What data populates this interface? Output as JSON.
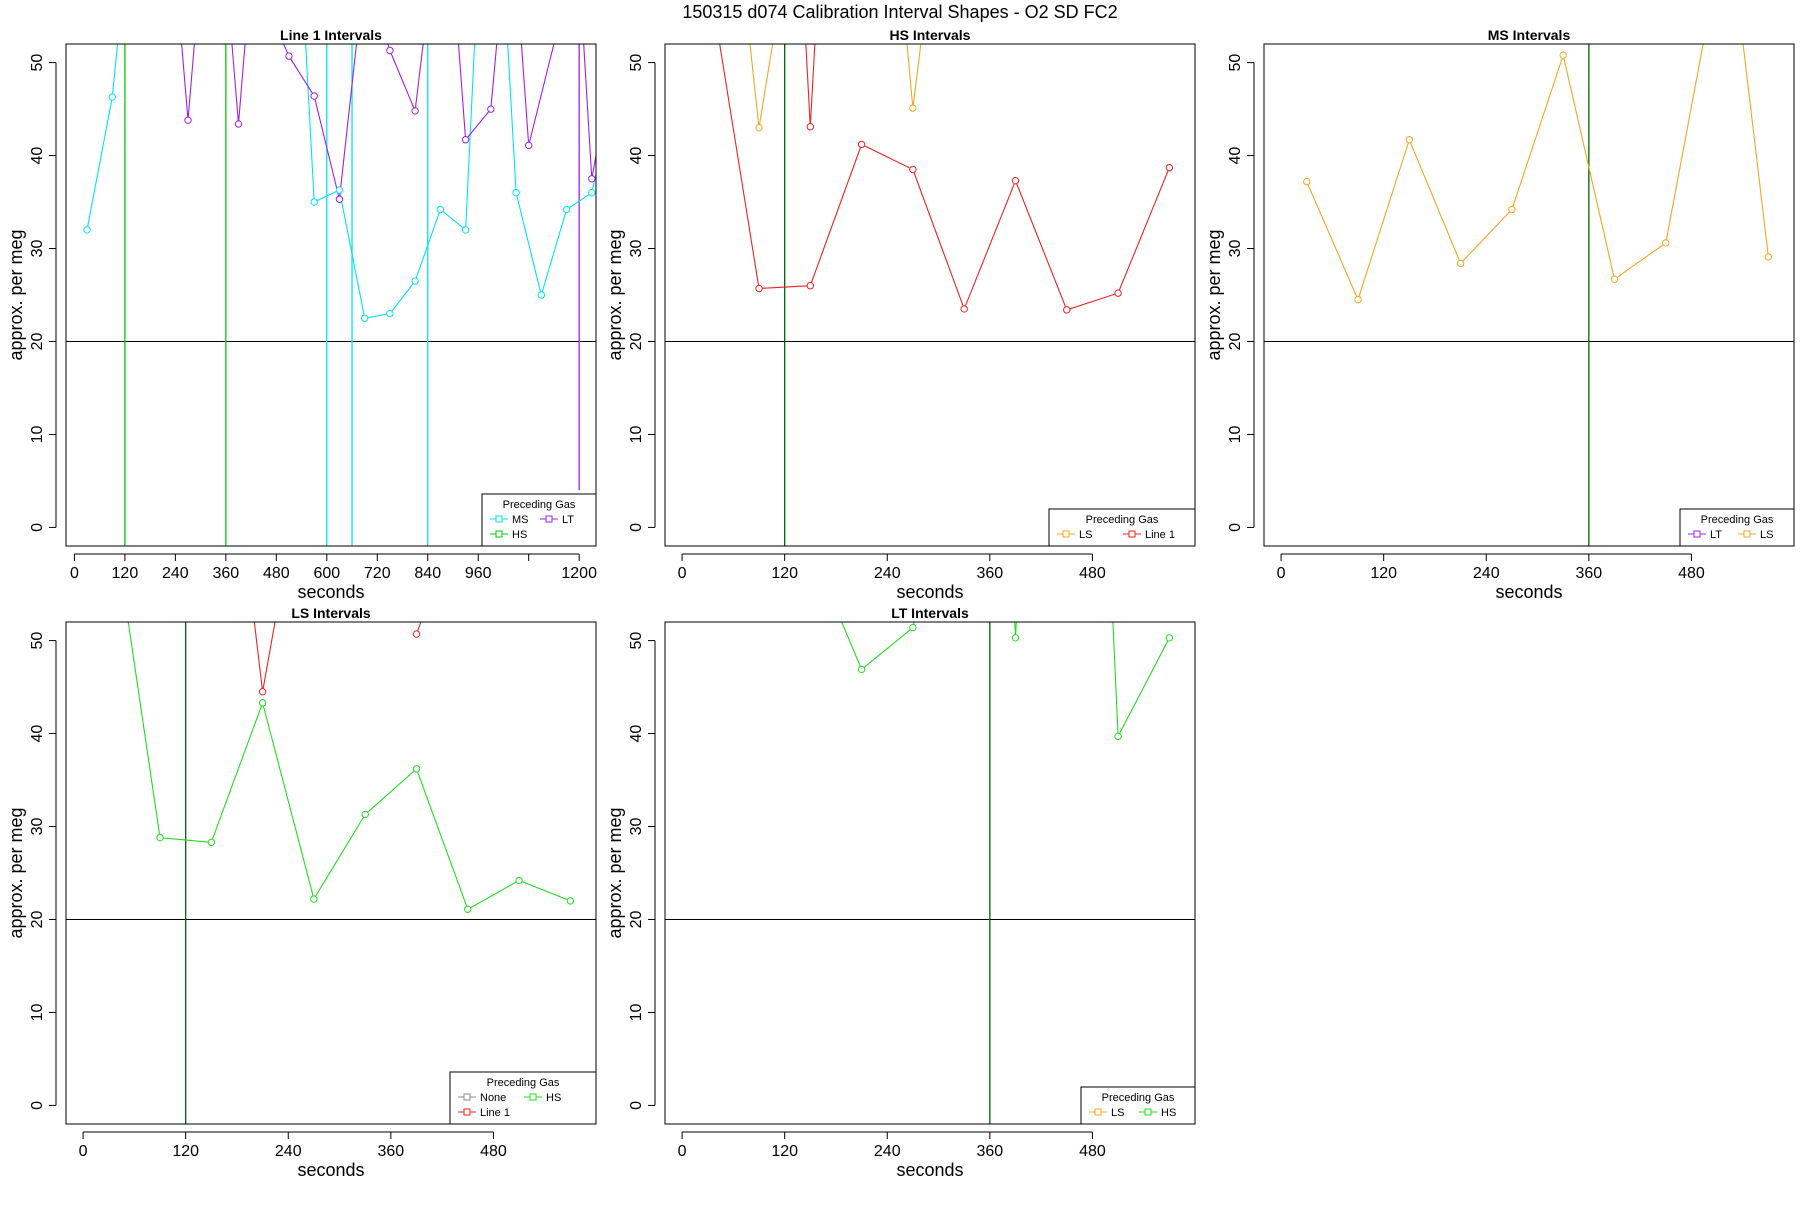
{
  "figure": {
    "suptitle": "150315   d074   Calibration Interval Shapes - O2 SD FC2"
  },
  "chart_data": [
    {
      "type": "line",
      "title": "Line 1 Intervals",
      "xlabel": "seconds",
      "ylabel": "approx. per meg",
      "xlim": [
        -20,
        1240
      ],
      "ylim": [
        -2,
        52
      ],
      "xticks": [
        0,
        120,
        240,
        360,
        480,
        600,
        720,
        840,
        960,
        1080,
        1200
      ],
      "xtick_labels": [
        "0",
        "120",
        "240",
        "360",
        "480",
        "600",
        "720",
        "840",
        "960",
        "",
        "1200"
      ],
      "yticks": [
        0,
        10,
        20,
        30,
        40,
        50
      ],
      "hline": 20,
      "legend": {
        "title": "Preceding Gas",
        "position": "bottom-right",
        "cols": 2,
        "entries": [
          {
            "label": "MS",
            "color": "#00e5ee"
          },
          {
            "label": "LT",
            "color": "#a020f0"
          },
          {
            "label": "HS",
            "color": "#00cc00"
          }
        ]
      },
      "vlines": [
        {
          "x": 120,
          "color": "#00cc00"
        },
        {
          "x": 360,
          "color": "#00cc00"
        },
        {
          "x": 600,
          "color": "#00e5ee"
        },
        {
          "x": 660,
          "color": "#00e5ee"
        },
        {
          "x": 840,
          "color": "#00e5ee"
        },
        {
          "x": 1200,
          "color": "#a020f0",
          "from": 52,
          "to": 4
        }
      ],
      "series": [
        {
          "name": "MS",
          "color": "#00e5ee",
          "points": [
            [
              30,
              32.0
            ],
            [
              90,
              46.3
            ],
            [
              120,
              60
            ],
            [
              540,
              60
            ],
            [
              570,
              35.0
            ],
            [
              630,
              36.3
            ],
            [
              690,
              22.5
            ],
            [
              750,
              23.0
            ],
            [
              810,
              26.5
            ],
            [
              870,
              34.2
            ],
            [
              930,
              32.0
            ],
            [
              960,
              60
            ],
            [
              1020,
              60
            ],
            [
              1050,
              36.0
            ],
            [
              1110,
              25.0
            ],
            [
              1170,
              34.2
            ],
            [
              1230,
              36.0
            ],
            [
              1240,
              38
            ]
          ]
        },
        {
          "name": "LT",
          "color": "#a020f0",
          "points": [
            [
              240,
              60
            ],
            [
              270,
              43.8
            ],
            [
              300,
              60
            ],
            [
              360,
              60
            ],
            [
              390,
              43.4
            ],
            [
              420,
              60
            ],
            [
              510,
              50.7
            ],
            [
              570,
              46.4
            ],
            [
              630,
              35.3
            ],
            [
              690,
              60
            ],
            [
              750,
              51.3
            ],
            [
              810,
              44.8
            ],
            [
              850,
              60
            ],
            [
              900,
              60
            ],
            [
              930,
              41.7
            ],
            [
              990,
              45.0
            ],
            [
              1020,
              60
            ],
            [
              1050,
              60
            ],
            [
              1080,
              41.1
            ],
            [
              1140,
              52
            ],
            [
              1170,
              52
            ],
            [
              1200,
              60
            ],
            [
              1230,
              37.5
            ],
            [
              1240,
              40
            ]
          ]
        }
      ],
      "markers": [
        {
          "x": 30,
          "y": 32.0,
          "color": "#00e5ee"
        },
        {
          "x": 90,
          "y": 46.3,
          "color": "#00e5ee"
        },
        {
          "x": 570,
          "y": 35.0,
          "color": "#00e5ee"
        },
        {
          "x": 630,
          "y": 36.3,
          "color": "#00e5ee"
        },
        {
          "x": 690,
          "y": 22.5,
          "color": "#00e5ee"
        },
        {
          "x": 750,
          "y": 23.0,
          "color": "#00e5ee"
        },
        {
          "x": 810,
          "y": 26.5,
          "color": "#00e5ee"
        },
        {
          "x": 870,
          "y": 34.2,
          "color": "#00e5ee"
        },
        {
          "x": 930,
          "y": 32.0,
          "color": "#00e5ee"
        },
        {
          "x": 1050,
          "y": 36.0,
          "color": "#00e5ee"
        },
        {
          "x": 1110,
          "y": 25.0,
          "color": "#00e5ee"
        },
        {
          "x": 1170,
          "y": 34.2,
          "color": "#00e5ee"
        },
        {
          "x": 1230,
          "y": 36.0,
          "color": "#00e5ee"
        },
        {
          "x": 270,
          "y": 43.8,
          "color": "#a020f0"
        },
        {
          "x": 390,
          "y": 43.4,
          "color": "#a020f0"
        },
        {
          "x": 510,
          "y": 50.7,
          "color": "#a020f0"
        },
        {
          "x": 570,
          "y": 46.4,
          "color": "#a020f0"
        },
        {
          "x": 630,
          "y": 35.3,
          "color": "#a020f0"
        },
        {
          "x": 750,
          "y": 51.3,
          "color": "#a020f0"
        },
        {
          "x": 810,
          "y": 44.8,
          "color": "#a020f0"
        },
        {
          "x": 930,
          "y": 41.7,
          "color": "#a020f0"
        },
        {
          "x": 990,
          "y": 45.0,
          "color": "#a020f0"
        },
        {
          "x": 1080,
          "y": 41.1,
          "color": "#a020f0"
        },
        {
          "x": 1230,
          "y": 37.5,
          "color": "#a020f0"
        }
      ]
    },
    {
      "type": "line",
      "title": "HS Intervals",
      "xlabel": "seconds",
      "ylabel": "approx. per meg",
      "xlim": [
        -20,
        600
      ],
      "ylim": [
        -2,
        52
      ],
      "xticks": [
        0,
        120,
        240,
        360,
        480
      ],
      "xtick_labels": [
        "0",
        "120",
        "240",
        "360",
        "480"
      ],
      "yticks": [
        0,
        10,
        20,
        30,
        40,
        50
      ],
      "hline": 20,
      "legend": {
        "title": "Preceding Gas",
        "position": "bottom-right",
        "cols": 2,
        "entries": [
          {
            "label": "LS",
            "color": "#f5a623"
          },
          {
            "label": "Line 1",
            "color": "#ee2222"
          }
        ]
      },
      "vlines": [
        {
          "x": 120,
          "color": "#006400"
        }
      ],
      "series": [
        {
          "name": "Line 1",
          "color": "#ee2222",
          "points": [
            [
              30,
              60
            ],
            [
              90,
              25.7
            ],
            [
              150,
              26.0
            ],
            [
              210,
              41.2
            ],
            [
              270,
              38.5
            ],
            [
              330,
              23.5
            ],
            [
              390,
              37.3
            ],
            [
              450,
              23.4
            ],
            [
              510,
              25.2
            ],
            [
              570,
              38.7
            ]
          ]
        },
        {
          "name": "Line 1 b",
          "color": "#ee2222",
          "points": [
            [
              140,
              60
            ],
            [
              150,
              43.1
            ],
            [
              160,
              60
            ]
          ]
        },
        {
          "name": "LS",
          "color": "#f5a623",
          "points": [
            [
              70,
              60
            ],
            [
              90,
              43.0
            ],
            [
              120,
              60
            ]
          ]
        },
        {
          "name": "LS b",
          "color": "#f5a623",
          "points": [
            [
              255,
              60
            ],
            [
              270,
              45.1
            ],
            [
              290,
              60
            ]
          ]
        }
      ],
      "markers": [
        {
          "x": 90,
          "y": 25.7,
          "color": "#ee2222"
        },
        {
          "x": 150,
          "y": 26.0,
          "color": "#ee2222"
        },
        {
          "x": 210,
          "y": 41.2,
          "color": "#ee2222"
        },
        {
          "x": 270,
          "y": 38.5,
          "color": "#ee2222"
        },
        {
          "x": 330,
          "y": 23.5,
          "color": "#ee2222"
        },
        {
          "x": 390,
          "y": 37.3,
          "color": "#ee2222"
        },
        {
          "x": 450,
          "y": 23.4,
          "color": "#ee2222"
        },
        {
          "x": 510,
          "y": 25.2,
          "color": "#ee2222"
        },
        {
          "x": 570,
          "y": 38.7,
          "color": "#ee2222"
        },
        {
          "x": 150,
          "y": 43.1,
          "color": "#ee2222"
        },
        {
          "x": 90,
          "y": 43.0,
          "color": "#f5a623"
        },
        {
          "x": 270,
          "y": 45.1,
          "color": "#f5a623"
        }
      ]
    },
    {
      "type": "line",
      "title": "MS Intervals",
      "xlabel": "seconds",
      "ylabel": "approx. per meg",
      "xlim": [
        -20,
        600
      ],
      "ylim": [
        -2,
        52
      ],
      "xticks": [
        0,
        120,
        240,
        360,
        480
      ],
      "xtick_labels": [
        "0",
        "120",
        "240",
        "360",
        "480"
      ],
      "yticks": [
        0,
        10,
        20,
        30,
        40,
        50
      ],
      "hline": 20,
      "legend": {
        "title": "Preceding Gas",
        "position": "bottom-right",
        "cols": 2,
        "entries": [
          {
            "label": "LT",
            "color": "#a020f0"
          },
          {
            "label": "LS",
            "color": "#f5a623"
          }
        ]
      },
      "vlines": [
        {
          "x": 360,
          "color": "#006400"
        }
      ],
      "series": [
        {
          "name": "LS",
          "color": "#f5a623",
          "points": [
            [
              30,
              37.2
            ],
            [
              90,
              24.5
            ],
            [
              150,
              41.7
            ],
            [
              210,
              28.4
            ],
            [
              270,
              34.2
            ],
            [
              330,
              50.8
            ],
            [
              390,
              26.7
            ],
            [
              450,
              30.6
            ],
            [
              510,
              60
            ]
          ]
        },
        {
          "name": "LS b",
          "color": "#f5a623",
          "points": [
            [
              530,
              60
            ],
            [
              570,
              29.1
            ]
          ]
        }
      ],
      "markers": [
        {
          "x": 30,
          "y": 37.2,
          "color": "#f5a623"
        },
        {
          "x": 90,
          "y": 24.5,
          "color": "#f5a623"
        },
        {
          "x": 150,
          "y": 41.7,
          "color": "#f5a623"
        },
        {
          "x": 210,
          "y": 28.4,
          "color": "#f5a623"
        },
        {
          "x": 270,
          "y": 34.2,
          "color": "#f5a623"
        },
        {
          "x": 330,
          "y": 50.8,
          "color": "#f5a623"
        },
        {
          "x": 390,
          "y": 26.7,
          "color": "#f5a623"
        },
        {
          "x": 450,
          "y": 30.6,
          "color": "#f5a623"
        },
        {
          "x": 570,
          "y": 29.1,
          "color": "#f5a623"
        }
      ]
    },
    {
      "type": "line",
      "title": "LS Intervals",
      "xlabel": "seconds",
      "ylabel": "approx. per meg",
      "xlim": [
        -20,
        600
      ],
      "ylim": [
        -2,
        52
      ],
      "xticks": [
        0,
        120,
        240,
        360,
        480
      ],
      "xtick_labels": [
        "0",
        "120",
        "240",
        "360",
        "480"
      ],
      "yticks": [
        0,
        10,
        20,
        30,
        40,
        50
      ],
      "hline": 20,
      "legend": {
        "title": "Preceding Gas",
        "position": "bottom-right",
        "cols": 2,
        "entries": [
          {
            "label": "None",
            "color": "#888888"
          },
          {
            "label": "HS",
            "color": "#22dd22"
          },
          {
            "label": "Line 1",
            "color": "#ee2222"
          }
        ]
      },
      "vlines": [
        {
          "x": 120,
          "color": "#006400"
        }
      ],
      "series": [
        {
          "name": "HS",
          "color": "#22dd22",
          "points": [
            [
              40,
              60
            ],
            [
              90,
              28.8
            ],
            [
              150,
              28.3
            ],
            [
              210,
              43.3
            ],
            [
              270,
              22.2
            ],
            [
              330,
              31.3
            ],
            [
              390,
              36.2
            ],
            [
              450,
              21.1
            ],
            [
              510,
              24.2
            ],
            [
              570,
              22.0
            ]
          ]
        },
        {
          "name": "Line 1",
          "color": "#ee2222",
          "points": [
            [
              190,
              60
            ],
            [
              210,
              44.5
            ],
            [
              240,
              60
            ]
          ]
        },
        {
          "name": "Line 1 b",
          "color": "#ee2222",
          "points": [
            [
              390,
              50.7
            ],
            [
              395,
              52
            ]
          ]
        }
      ],
      "markers": [
        {
          "x": 90,
          "y": 28.8,
          "color": "#22dd22"
        },
        {
          "x": 150,
          "y": 28.3,
          "color": "#22dd22"
        },
        {
          "x": 210,
          "y": 43.3,
          "color": "#22dd22"
        },
        {
          "x": 270,
          "y": 22.2,
          "color": "#22dd22"
        },
        {
          "x": 330,
          "y": 31.3,
          "color": "#22dd22"
        },
        {
          "x": 390,
          "y": 36.2,
          "color": "#22dd22"
        },
        {
          "x": 450,
          "y": 21.1,
          "color": "#22dd22"
        },
        {
          "x": 510,
          "y": 24.2,
          "color": "#22dd22"
        },
        {
          "x": 570,
          "y": 22.0,
          "color": "#22dd22"
        },
        {
          "x": 210,
          "y": 44.5,
          "color": "#ee2222"
        },
        {
          "x": 390,
          "y": 50.7,
          "color": "#ee2222"
        }
      ]
    },
    {
      "type": "line",
      "title": "LT Intervals",
      "xlabel": "seconds",
      "ylabel": "approx. per meg",
      "xlim": [
        -20,
        600
      ],
      "ylim": [
        -2,
        52
      ],
      "xticks": [
        0,
        120,
        240,
        360,
        480
      ],
      "xtick_labels": [
        "0",
        "120",
        "240",
        "360",
        "480"
      ],
      "yticks": [
        0,
        10,
        20,
        30,
        40,
        50
      ],
      "hline": 20,
      "legend": {
        "title": "Preceding Gas",
        "position": "bottom-right",
        "cols": 2,
        "entries": [
          {
            "label": "LS",
            "color": "#f5a623"
          },
          {
            "label": "HS",
            "color": "#22dd22"
          }
        ]
      },
      "vlines": [
        {
          "x": 360,
          "color": "#006400"
        }
      ],
      "series": [
        {
          "name": "HS",
          "color": "#22dd22",
          "points": [
            [
              150,
              60
            ],
            [
              210,
              46.9
            ],
            [
              270,
              51.4
            ],
            [
              290,
              60
            ]
          ]
        },
        {
          "name": "HS b",
          "color": "#22dd22",
          "points": [
            [
              385,
              60
            ],
            [
              390,
              50.3
            ],
            [
              395,
              60
            ]
          ]
        },
        {
          "name": "HS c",
          "color": "#22dd22",
          "points": [
            [
              500,
              60
            ],
            [
              510,
              39.7
            ],
            [
              570,
              50.3
            ]
          ]
        }
      ],
      "markers": [
        {
          "x": 210,
          "y": 46.9,
          "color": "#22dd22"
        },
        {
          "x": 270,
          "y": 51.4,
          "color": "#22dd22"
        },
        {
          "x": 390,
          "y": 50.3,
          "color": "#22dd22"
        },
        {
          "x": 510,
          "y": 39.7,
          "color": "#22dd22"
        },
        {
          "x": 570,
          "y": 50.3,
          "color": "#22dd22"
        }
      ]
    }
  ]
}
